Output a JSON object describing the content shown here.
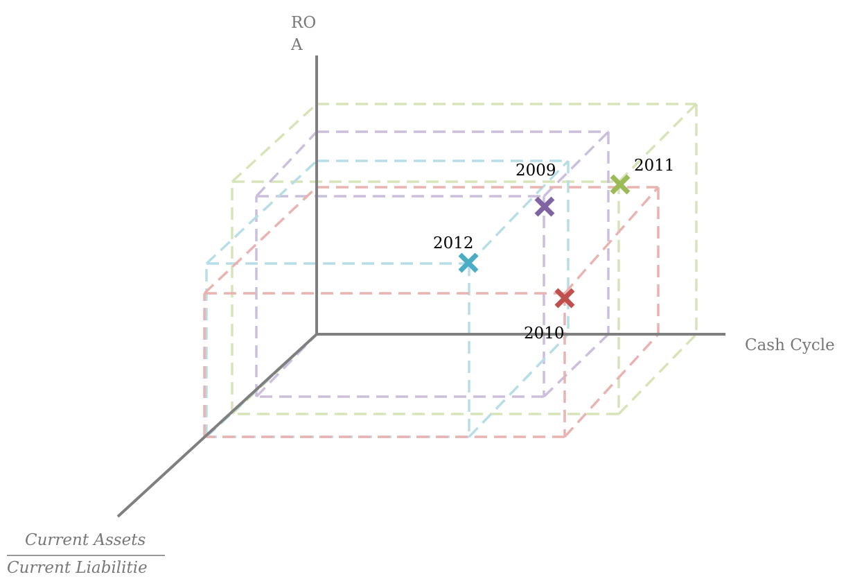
{
  "axes": {
    "vertical": [
      "RO",
      "A"
    ],
    "horizontal": "Cash Cycle",
    "depth": {
      "numerator": "Current Assets",
      "denominator": "Current Liabilitie"
    }
  },
  "points": [
    {
      "label": "2009"
    },
    {
      "label": "2010"
    },
    {
      "label": "2011"
    },
    {
      "label": "2012"
    }
  ]
}
